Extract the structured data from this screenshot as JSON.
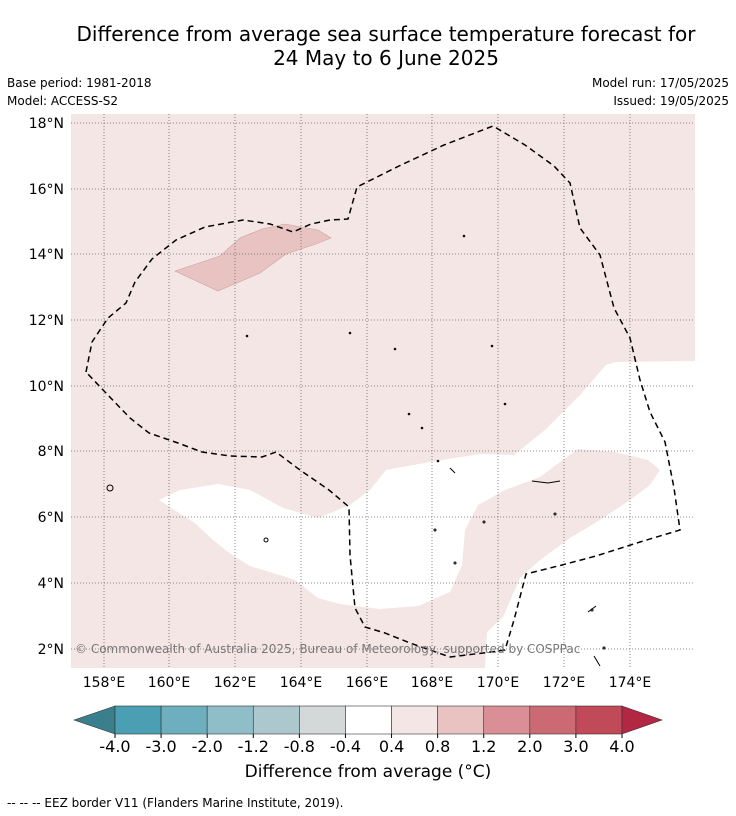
{
  "title_line1": "Difference from average sea surface temperature forecast for",
  "title_line2": "24 May to 6 June 2025",
  "base_period": "Base period: 1981-2018",
  "model": "Model: ACCESS-S2",
  "model_run": "Model run: 17/05/2025",
  "issued": "Issued: 19/05/2025",
  "lat_labels": [
    "18°N",
    "16°N",
    "14°N",
    "12°N",
    "10°N",
    "8°N",
    "6°N",
    "4°N",
    "2°N"
  ],
  "lon_labels": [
    "158°E",
    "160°E",
    "162°E",
    "164°E",
    "166°E",
    "168°E",
    "170°E",
    "172°E",
    "174°E"
  ],
  "copyright": "© Commonwealth of Australia 2025, Bureau of Meteorology, supported by COSPPac",
  "colorbar": {
    "ticks": [
      "-4.0",
      "-3.0",
      "-2.0",
      "-1.2",
      "-0.8",
      "-0.4",
      "0.4",
      "0.8",
      "1.2",
      "2.0",
      "3.0",
      "4.0"
    ],
    "colors": [
      "#4a9fb3",
      "#6daebf",
      "#8fbdc8",
      "#acc8ce",
      "#d3d8d8",
      "#ffffff",
      "#f5e6e6",
      "#e8c3c1",
      "#d98f95",
      "#cc6a74",
      "#c04a58"
    ],
    "low_extend_color": "#3a7f8b",
    "high_extend_color": "#b22843",
    "label": "Difference from average (°C)"
  },
  "footnote": "-- -- -- EEZ border V11 (Flanders Marine Institute, 2019)."
}
